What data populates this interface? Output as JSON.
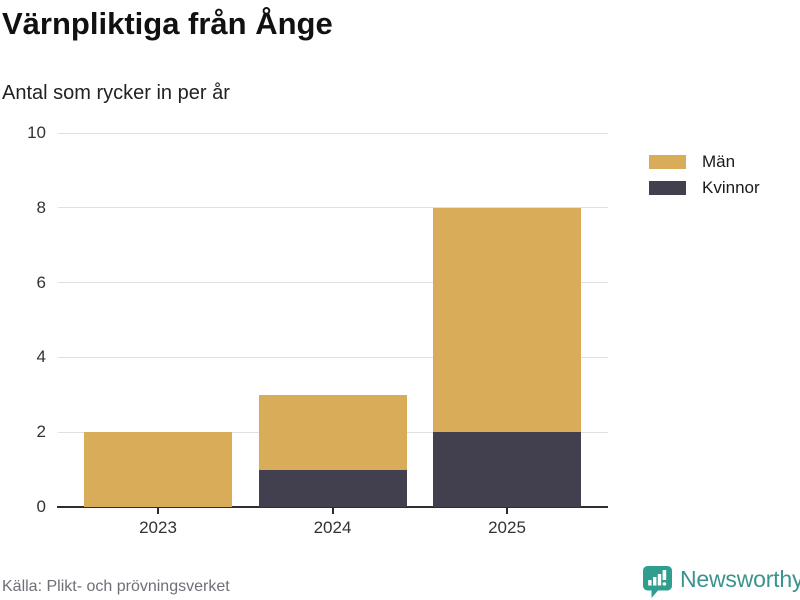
{
  "header": {
    "title": "Värnpliktiga från Ånge",
    "subtitle": "Antal som rycker in per år"
  },
  "legend": {
    "items": [
      {
        "label": "Män",
        "color": "#d9ac5a"
      },
      {
        "label": "Kvinnor",
        "color": "#42404e"
      }
    ]
  },
  "chart_data": {
    "type": "bar",
    "stacked": true,
    "title": "Värnpliktiga från Ånge",
    "subtitle": "Antal som rycker in per år",
    "categories": [
      "2023",
      "2024",
      "2025"
    ],
    "series": [
      {
        "name": "Kvinnor",
        "key": "kvinnor",
        "color": "#42404e",
        "values": [
          0,
          1,
          2
        ]
      },
      {
        "name": "Män",
        "key": "man",
        "color": "#d9ac5a",
        "values": [
          2,
          2,
          6
        ]
      }
    ],
    "totals": [
      2,
      3,
      8
    ],
    "xlabel": "",
    "ylabel": "",
    "ylim": [
      0,
      10
    ],
    "yticks": [
      0,
      2,
      4,
      6,
      8,
      10
    ],
    "grid": true,
    "gridline_color": "#e0e0e0",
    "axis_color": "#2d2d2d",
    "legend_position": "right"
  },
  "footer": {
    "source": "Källa: Plikt- och prövningsverket",
    "brand": "Newsworthy",
    "brand_color": "#3a938e",
    "brand_icon_color": "#2f9e8e"
  }
}
